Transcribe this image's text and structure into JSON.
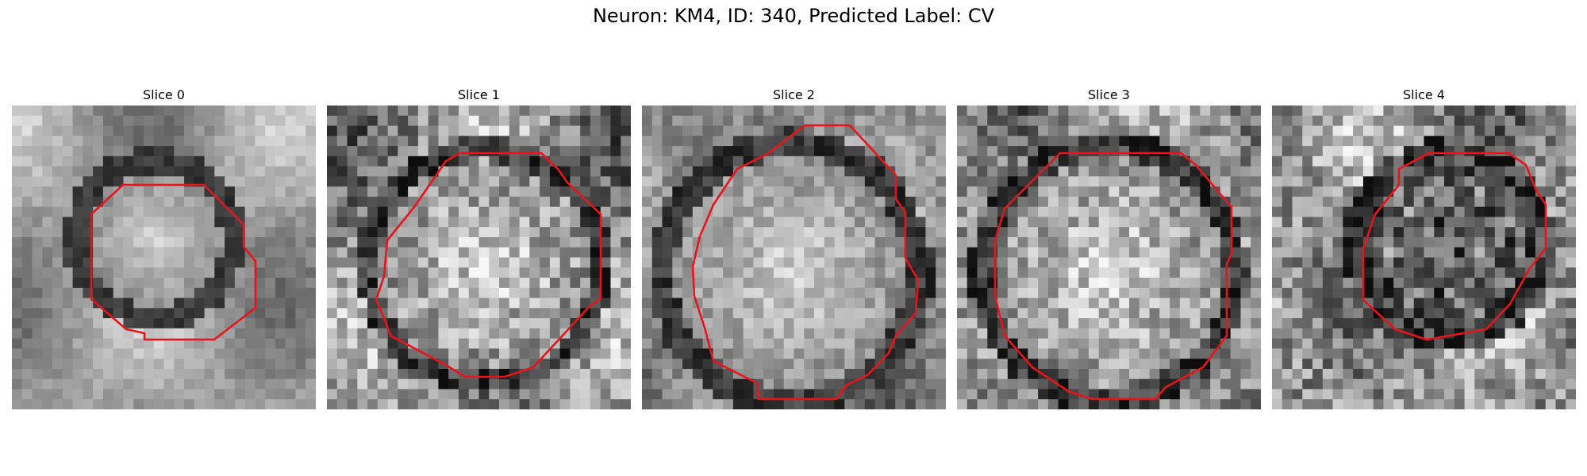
{
  "figure": {
    "title": "Neuron: KM4, ID: 340, Predicted Label: CV",
    "grid_cells": 30,
    "contour_color": "#e8141c",
    "panels": [
      {
        "title": "Slice 0"
      },
      {
        "title": "Slice 1"
      },
      {
        "title": "Slice 2"
      },
      {
        "title": "Slice 3"
      },
      {
        "title": "Slice 4"
      }
    ]
  }
}
